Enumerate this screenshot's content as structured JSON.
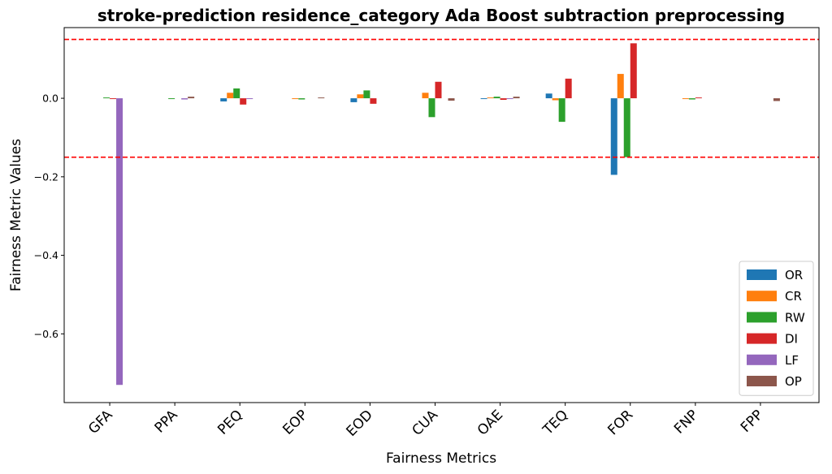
{
  "chart_data": {
    "type": "bar",
    "title": "stroke-prediction residence_category Ada Boost subtraction preprocessing",
    "xlabel": "Fairness Metrics",
    "ylabel": "Fairness Metric Values",
    "categories": [
      "GFA",
      "PPA",
      "PEQ",
      "EOP",
      "EOD",
      "CUA",
      "OAE",
      "TEQ",
      "FOR",
      "FNP",
      "FPP"
    ],
    "ylim": [
      -0.775,
      0.18
    ],
    "yticks": [
      0.0,
      -0.2,
      -0.4,
      -0.6
    ],
    "ytick_labels": [
      "0.0",
      "−0.2",
      "−0.4",
      "−0.6"
    ],
    "reference_lines": [
      0.15,
      -0.15
    ],
    "reference_line_color": "#ff0000",
    "legend_position": "lower-right",
    "grid": false,
    "series": [
      {
        "name": "OR",
        "color": "#1f77b4",
        "values": [
          0.0,
          0.0,
          -0.008,
          0.0,
          -0.01,
          0.0,
          -0.002,
          0.012,
          -0.195,
          0.0,
          0.0
        ]
      },
      {
        "name": "CR",
        "color": "#ff7f0e",
        "values": [
          0.0,
          0.0,
          0.014,
          -0.002,
          0.01,
          0.014,
          0.002,
          -0.005,
          0.062,
          -0.002,
          0.0
        ]
      },
      {
        "name": "RW",
        "color": "#2ca02c",
        "values": [
          0.002,
          -0.002,
          0.025,
          -0.003,
          0.02,
          -0.048,
          0.004,
          -0.06,
          -0.15,
          -0.003,
          0.0
        ]
      },
      {
        "name": "DI",
        "color": "#d62728",
        "values": [
          -0.002,
          0.0,
          -0.016,
          0.0,
          -0.014,
          0.042,
          -0.004,
          0.05,
          0.14,
          0.002,
          0.0
        ]
      },
      {
        "name": "LF",
        "color": "#9467bd",
        "values": [
          -0.73,
          -0.003,
          -0.002,
          0.0,
          0.0,
          0.0,
          -0.002,
          0.0,
          0.0,
          0.0,
          0.0
        ]
      },
      {
        "name": "OP",
        "color": "#8c564b",
        "values": [
          0.0,
          0.004,
          0.0,
          0.002,
          0.0,
          -0.006,
          0.004,
          0.0,
          0.0,
          0.0,
          -0.007
        ]
      }
    ]
  }
}
